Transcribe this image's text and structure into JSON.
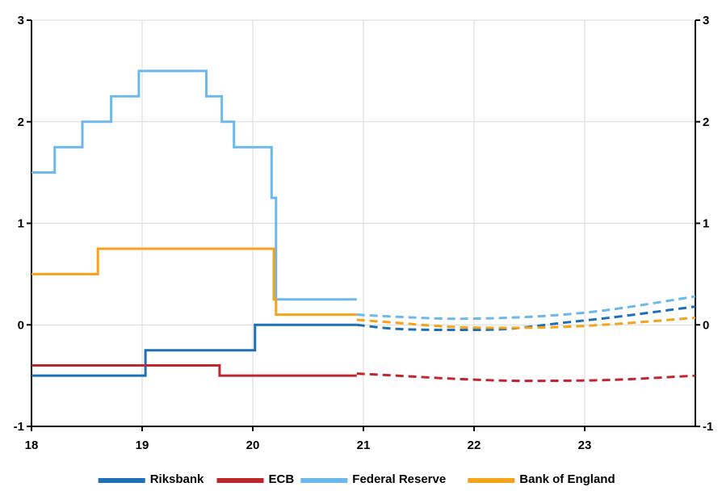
{
  "chart_data": {
    "type": "line",
    "title": "",
    "xlabel": "",
    "ylabel": "",
    "xlim": [
      18,
      24
    ],
    "ylim": [
      -1,
      3
    ],
    "x_ticks": [
      {
        "value": 18,
        "label": "18"
      },
      {
        "value": 19,
        "label": "19"
      },
      {
        "value": 20,
        "label": "20"
      },
      {
        "value": 21,
        "label": "21"
      },
      {
        "value": 22,
        "label": "22"
      },
      {
        "value": 23,
        "label": "23"
      }
    ],
    "y_ticks": [
      {
        "value": -1,
        "label": "-1"
      },
      {
        "value": 0,
        "label": "0"
      },
      {
        "value": 1,
        "label": "1"
      },
      {
        "value": 2,
        "label": "2"
      },
      {
        "value": 3,
        "label": "3"
      }
    ],
    "grid": {
      "vertical": true,
      "horizontal": true
    },
    "legend_position": "bottom",
    "series": [
      {
        "name": "Riksbank",
        "color": "#1f6fb4",
        "step": true,
        "outcome": [
          [
            18.0,
            -0.5
          ],
          [
            19.03,
            -0.25
          ],
          [
            20.02,
            0.0
          ],
          [
            20.94,
            0.0
          ]
        ],
        "forecast": [
          [
            20.94,
            0.0
          ],
          [
            21.3,
            -0.04
          ],
          [
            21.8,
            -0.05
          ],
          [
            22.3,
            -0.04
          ],
          [
            22.8,
            0.02
          ],
          [
            23.3,
            0.08
          ],
          [
            24.0,
            0.18
          ]
        ]
      },
      {
        "name": "ECB",
        "color": "#c0272d",
        "step": true,
        "outcome": [
          [
            18.0,
            -0.4
          ],
          [
            19.7,
            -0.5
          ],
          [
            20.94,
            -0.5
          ]
        ],
        "forecast": [
          [
            20.94,
            -0.48
          ],
          [
            21.3,
            -0.5
          ],
          [
            21.8,
            -0.53
          ],
          [
            22.3,
            -0.55
          ],
          [
            22.8,
            -0.55
          ],
          [
            23.3,
            -0.54
          ],
          [
            24.0,
            -0.5
          ]
        ]
      },
      {
        "name": "Federal Reserve",
        "color": "#6cb8ea",
        "step": true,
        "outcome": [
          [
            18.0,
            1.5
          ],
          [
            18.21,
            1.75
          ],
          [
            18.46,
            2.0
          ],
          [
            18.72,
            2.25
          ],
          [
            18.97,
            2.5
          ],
          [
            19.58,
            2.25
          ],
          [
            19.72,
            2.0
          ],
          [
            19.83,
            1.75
          ],
          [
            20.17,
            1.25
          ],
          [
            20.21,
            0.25
          ],
          [
            20.94,
            0.25
          ]
        ],
        "forecast": [
          [
            20.94,
            0.1
          ],
          [
            21.3,
            0.08
          ],
          [
            21.8,
            0.06
          ],
          [
            22.3,
            0.07
          ],
          [
            22.8,
            0.1
          ],
          [
            23.3,
            0.16
          ],
          [
            24.0,
            0.28
          ]
        ]
      },
      {
        "name": "Bank of England",
        "color": "#f5a31a",
        "step": true,
        "outcome": [
          [
            18.0,
            0.5
          ],
          [
            18.6,
            0.75
          ],
          [
            20.19,
            0.25
          ],
          [
            20.21,
            0.1
          ],
          [
            20.94,
            0.1
          ]
        ],
        "forecast": [
          [
            20.94,
            0.05
          ],
          [
            21.3,
            0.02
          ],
          [
            21.8,
            -0.02
          ],
          [
            22.3,
            -0.03
          ],
          [
            22.8,
            -0.02
          ],
          [
            23.3,
            0.01
          ],
          [
            24.0,
            0.07
          ]
        ]
      }
    ]
  }
}
